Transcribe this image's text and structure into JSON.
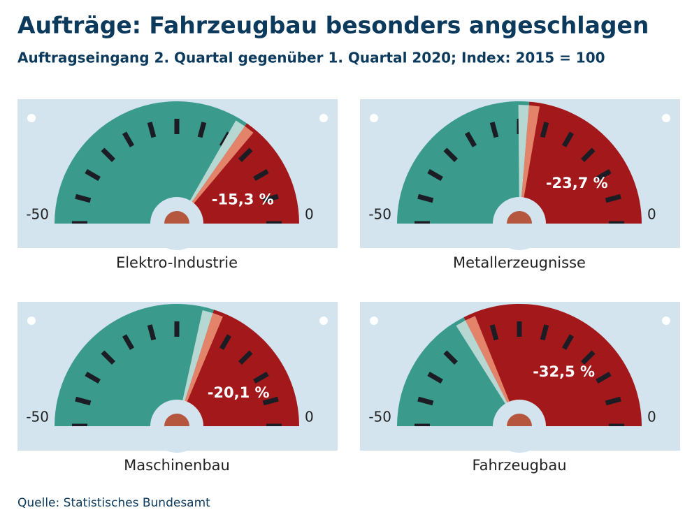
{
  "title": "Aufträge: Fahrzeugbau besonders angeschlagen",
  "subtitle": "Auftragseingang 2. Quartal gegenüber 1. Quartal 2020; Index: 2015 = 100",
  "source": "Quelle: Statistisches Bundesamt",
  "chart_data": [
    {
      "type": "gauge",
      "title": "Elektro-Industrie",
      "value": -15.3,
      "value_label": "-15,3 %",
      "xlim": [
        -50,
        0
      ],
      "xticks": [
        -50,
        0
      ],
      "colors": [
        "#3a9a8b",
        "#a3191b"
      ]
    },
    {
      "type": "gauge",
      "title": "Metallerzeugnisse",
      "value": -23.7,
      "value_label": "-23,7 %",
      "xlim": [
        -50,
        0
      ],
      "xticks": [
        -50,
        0
      ],
      "colors": [
        "#3a9a8b",
        "#a3191b"
      ]
    },
    {
      "type": "gauge",
      "title": "Maschinenbau",
      "value": -20.1,
      "value_label": "-20,1 %",
      "xlim": [
        -50,
        0
      ],
      "xticks": [
        -50,
        0
      ],
      "colors": [
        "#3a9a8b",
        "#a3191b"
      ]
    },
    {
      "type": "gauge",
      "title": "Fahrzeugbau",
      "value": -32.5,
      "value_label": "-32,5 %",
      "xlim": [
        -50,
        0
      ],
      "xticks": [
        -50,
        0
      ],
      "colors": [
        "#3a9a8b",
        "#a3191b"
      ]
    }
  ]
}
